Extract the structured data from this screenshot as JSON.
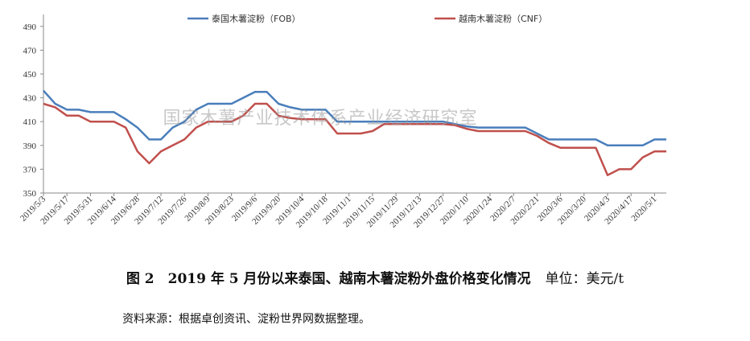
{
  "chart_data": {
    "type": "line",
    "ylim": [
      350,
      500
    ],
    "yticks": [
      350,
      370,
      390,
      410,
      430,
      450,
      470,
      490
    ],
    "legend_position": "top",
    "grid": false,
    "watermark": "国家木薯产业技术体系产业经济研究室",
    "xticks": [
      "2019/5/3",
      "2019/5/17",
      "2019/5/31",
      "2019/6/14",
      "2019/6/28",
      "2019/7/12",
      "2019/7/26",
      "2019/8/9",
      "2019/8/23",
      "2019/9/6",
      "2019/9/20",
      "2019/10/4",
      "2019/10/18",
      "2019/11/1",
      "2019/11/15",
      "2019/11/29",
      "2019/12/13",
      "2019/12/27",
      "2020/1/10",
      "2020/1/24",
      "2020/2/7",
      "2020/2/21",
      "2020/3/6",
      "2020/3/20",
      "2020/4/3",
      "2020/4/17",
      "2020/5/1"
    ],
    "x": [
      "2019/5/3",
      "2019/5/10",
      "2019/5/17",
      "2019/5/24",
      "2019/5/31",
      "2019/6/7",
      "2019/6/14",
      "2019/6/21",
      "2019/6/28",
      "2019/7/5",
      "2019/7/12",
      "2019/7/19",
      "2019/7/26",
      "2019/8/2",
      "2019/8/9",
      "2019/8/16",
      "2019/8/23",
      "2019/8/30",
      "2019/9/6",
      "2019/9/13",
      "2019/9/20",
      "2019/9/27",
      "2019/10/4",
      "2019/10/11",
      "2019/10/18",
      "2019/10/25",
      "2019/11/1",
      "2019/11/8",
      "2019/11/15",
      "2019/11/22",
      "2019/11/29",
      "2019/12/6",
      "2019/12/13",
      "2019/12/20",
      "2019/12/27",
      "2020/1/3",
      "2020/1/10",
      "2020/1/17",
      "2020/1/24",
      "2020/1/31",
      "2020/2/7",
      "2020/2/14",
      "2020/2/21",
      "2020/2/28",
      "2020/3/6",
      "2020/3/13",
      "2020/3/20",
      "2020/3/27",
      "2020/4/3",
      "2020/4/10",
      "2020/4/17",
      "2020/4/24",
      "2020/5/1",
      "2020/5/8"
    ],
    "series": [
      {
        "name": "泰国木薯淀粉（FOB）",
        "color": "#4a7ebb",
        "values": [
          436,
          425,
          420,
          420,
          418,
          418,
          418,
          412,
          405,
          395,
          395,
          405,
          410,
          420,
          425,
          425,
          425,
          430,
          435,
          435,
          425,
          422,
          420,
          420,
          420,
          410,
          410,
          410,
          410,
          410,
          410,
          410,
          410,
          410,
          410,
          408,
          406,
          405,
          405,
          405,
          405,
          405,
          400,
          395,
          395,
          395,
          395,
          395,
          390,
          390,
          390,
          390,
          395,
          395
        ]
      },
      {
        "name": "越南木薯淀粉（CNF）",
        "color": "#c0504d",
        "values": [
          425,
          422,
          415,
          415,
          410,
          410,
          410,
          405,
          385,
          375,
          385,
          390,
          395,
          405,
          410,
          410,
          410,
          415,
          425,
          425,
          415,
          413,
          412,
          412,
          412,
          400,
          400,
          400,
          402,
          408,
          408,
          408,
          408,
          408,
          408,
          407,
          404,
          402,
          402,
          402,
          402,
          402,
          398,
          392,
          388,
          388,
          388,
          388,
          365,
          370,
          370,
          380,
          385,
          385
        ]
      }
    ]
  },
  "caption": {
    "title": "图 2　2019 年 5 月份以来泰国、越南木薯淀粉外盘价格变化情况",
    "unit": "单位：美元/t"
  },
  "source": "资料来源：根据卓创资讯、淀粉世界网数据整理。"
}
